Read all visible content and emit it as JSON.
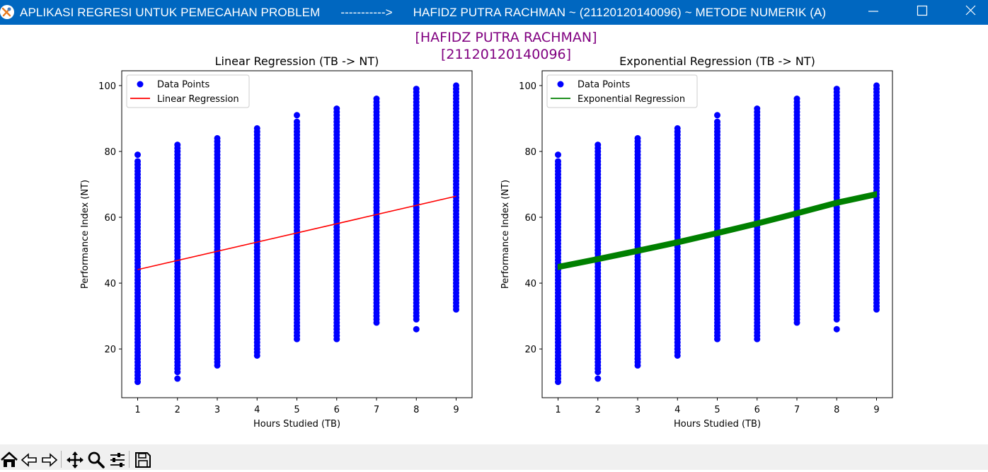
{
  "window": {
    "title": "APLIKASI REGRESI UNTUK PEMECAHAN PROBLEM      ----------->      HAFIDZ PUTRA RACHMAN ~ (21120120140096) ~ METODE NUMERIK (A)",
    "minimize_icon": "minimize-icon",
    "maximize_icon": "maximize-icon",
    "close_icon": "close-icon"
  },
  "figure": {
    "suptitle_line1": "[HAFIDZ PUTRA RACHMAN]",
    "suptitle_line2": "[21120120140096]",
    "suptitle_color": "#800080"
  },
  "chart_data": [
    {
      "type": "scatter",
      "title": "Linear Regression (TB -> NT)",
      "xlabel": "Hours Studied (TB)",
      "ylabel": "Performance Index (NT)",
      "xlim": [
        0.6,
        9.4
      ],
      "ylim": [
        5.2,
        104.5
      ],
      "xticks": [
        1,
        2,
        3,
        4,
        5,
        6,
        7,
        8,
        9
      ],
      "yticks": [
        20,
        40,
        60,
        80,
        100
      ],
      "grid": false,
      "legend_position": "upper-left",
      "series": [
        {
          "name": "Data Points",
          "kind": "points",
          "color": "#0000ff",
          "columns": [
            {
              "x": 1,
              "y_min": 10,
              "y_max": 77,
              "outliers": [
                79
              ]
            },
            {
              "x": 2,
              "y_min": 13,
              "y_max": 82,
              "outliers": [
                11
              ]
            },
            {
              "x": 3,
              "y_min": 15,
              "y_max": 84,
              "outliers": []
            },
            {
              "x": 4,
              "y_min": 18,
              "y_max": 87,
              "outliers": []
            },
            {
              "x": 5,
              "y_min": 23,
              "y_max": 89,
              "outliers": [
                91
              ]
            },
            {
              "x": 6,
              "y_min": 23,
              "y_max": 93,
              "outliers": []
            },
            {
              "x": 7,
              "y_min": 28,
              "y_max": 96,
              "outliers": []
            },
            {
              "x": 8,
              "y_min": 29,
              "y_max": 99,
              "outliers": [
                26
              ]
            },
            {
              "x": 9,
              "y_min": 32,
              "y_max": 100,
              "outliers": []
            }
          ]
        },
        {
          "name": "Linear Regression",
          "kind": "line",
          "color": "#ff0000",
          "x": [
            1,
            9
          ],
          "y": [
            44.1,
            66.4
          ],
          "band": 0
        }
      ]
    },
    {
      "type": "scatter",
      "title": "Exponential Regression (TB -> NT)",
      "xlabel": "Hours Studied (TB)",
      "ylabel": "Performance Index (NT)",
      "xlim": [
        0.6,
        9.4
      ],
      "ylim": [
        5.2,
        104.5
      ],
      "xticks": [
        1,
        2,
        3,
        4,
        5,
        6,
        7,
        8,
        9
      ],
      "yticks": [
        20,
        40,
        60,
        80,
        100
      ],
      "grid": false,
      "legend_position": "upper-left",
      "series": [
        {
          "name": "Data Points",
          "kind": "points",
          "color": "#0000ff",
          "columns": [
            {
              "x": 1,
              "y_min": 10,
              "y_max": 77,
              "outliers": [
                79
              ]
            },
            {
              "x": 2,
              "y_min": 13,
              "y_max": 82,
              "outliers": [
                11
              ]
            },
            {
              "x": 3,
              "y_min": 15,
              "y_max": 84,
              "outliers": []
            },
            {
              "x": 4,
              "y_min": 18,
              "y_max": 87,
              "outliers": []
            },
            {
              "x": 5,
              "y_min": 23,
              "y_max": 89,
              "outliers": [
                91
              ]
            },
            {
              "x": 6,
              "y_min": 23,
              "y_max": 93,
              "outliers": []
            },
            {
              "x": 7,
              "y_min": 28,
              "y_max": 96,
              "outliers": []
            },
            {
              "x": 8,
              "y_min": 29,
              "y_max": 99,
              "outliers": [
                26
              ]
            },
            {
              "x": 9,
              "y_min": 32,
              "y_max": 100,
              "outliers": []
            }
          ]
        },
        {
          "name": "Exponential Regression",
          "kind": "line",
          "color": "#008000",
          "x": [
            1,
            2,
            3,
            4,
            5,
            6,
            7,
            8,
            9
          ],
          "y": [
            44.9,
            47.3,
            49.8,
            52.4,
            55.2,
            58.1,
            61.2,
            64.4,
            67.0
          ],
          "band": 0.8
        }
      ]
    }
  ],
  "toolbar": {
    "buttons": [
      {
        "name": "home-icon",
        "label": "Home"
      },
      {
        "name": "back-icon",
        "label": "Back"
      },
      {
        "name": "forward-icon",
        "label": "Forward"
      },
      {
        "name": "pan-icon",
        "label": "Pan"
      },
      {
        "name": "zoom-icon",
        "label": "Zoom"
      },
      {
        "name": "subplots-icon",
        "label": "Configure subplots"
      },
      {
        "name": "save-icon",
        "label": "Save"
      }
    ]
  }
}
